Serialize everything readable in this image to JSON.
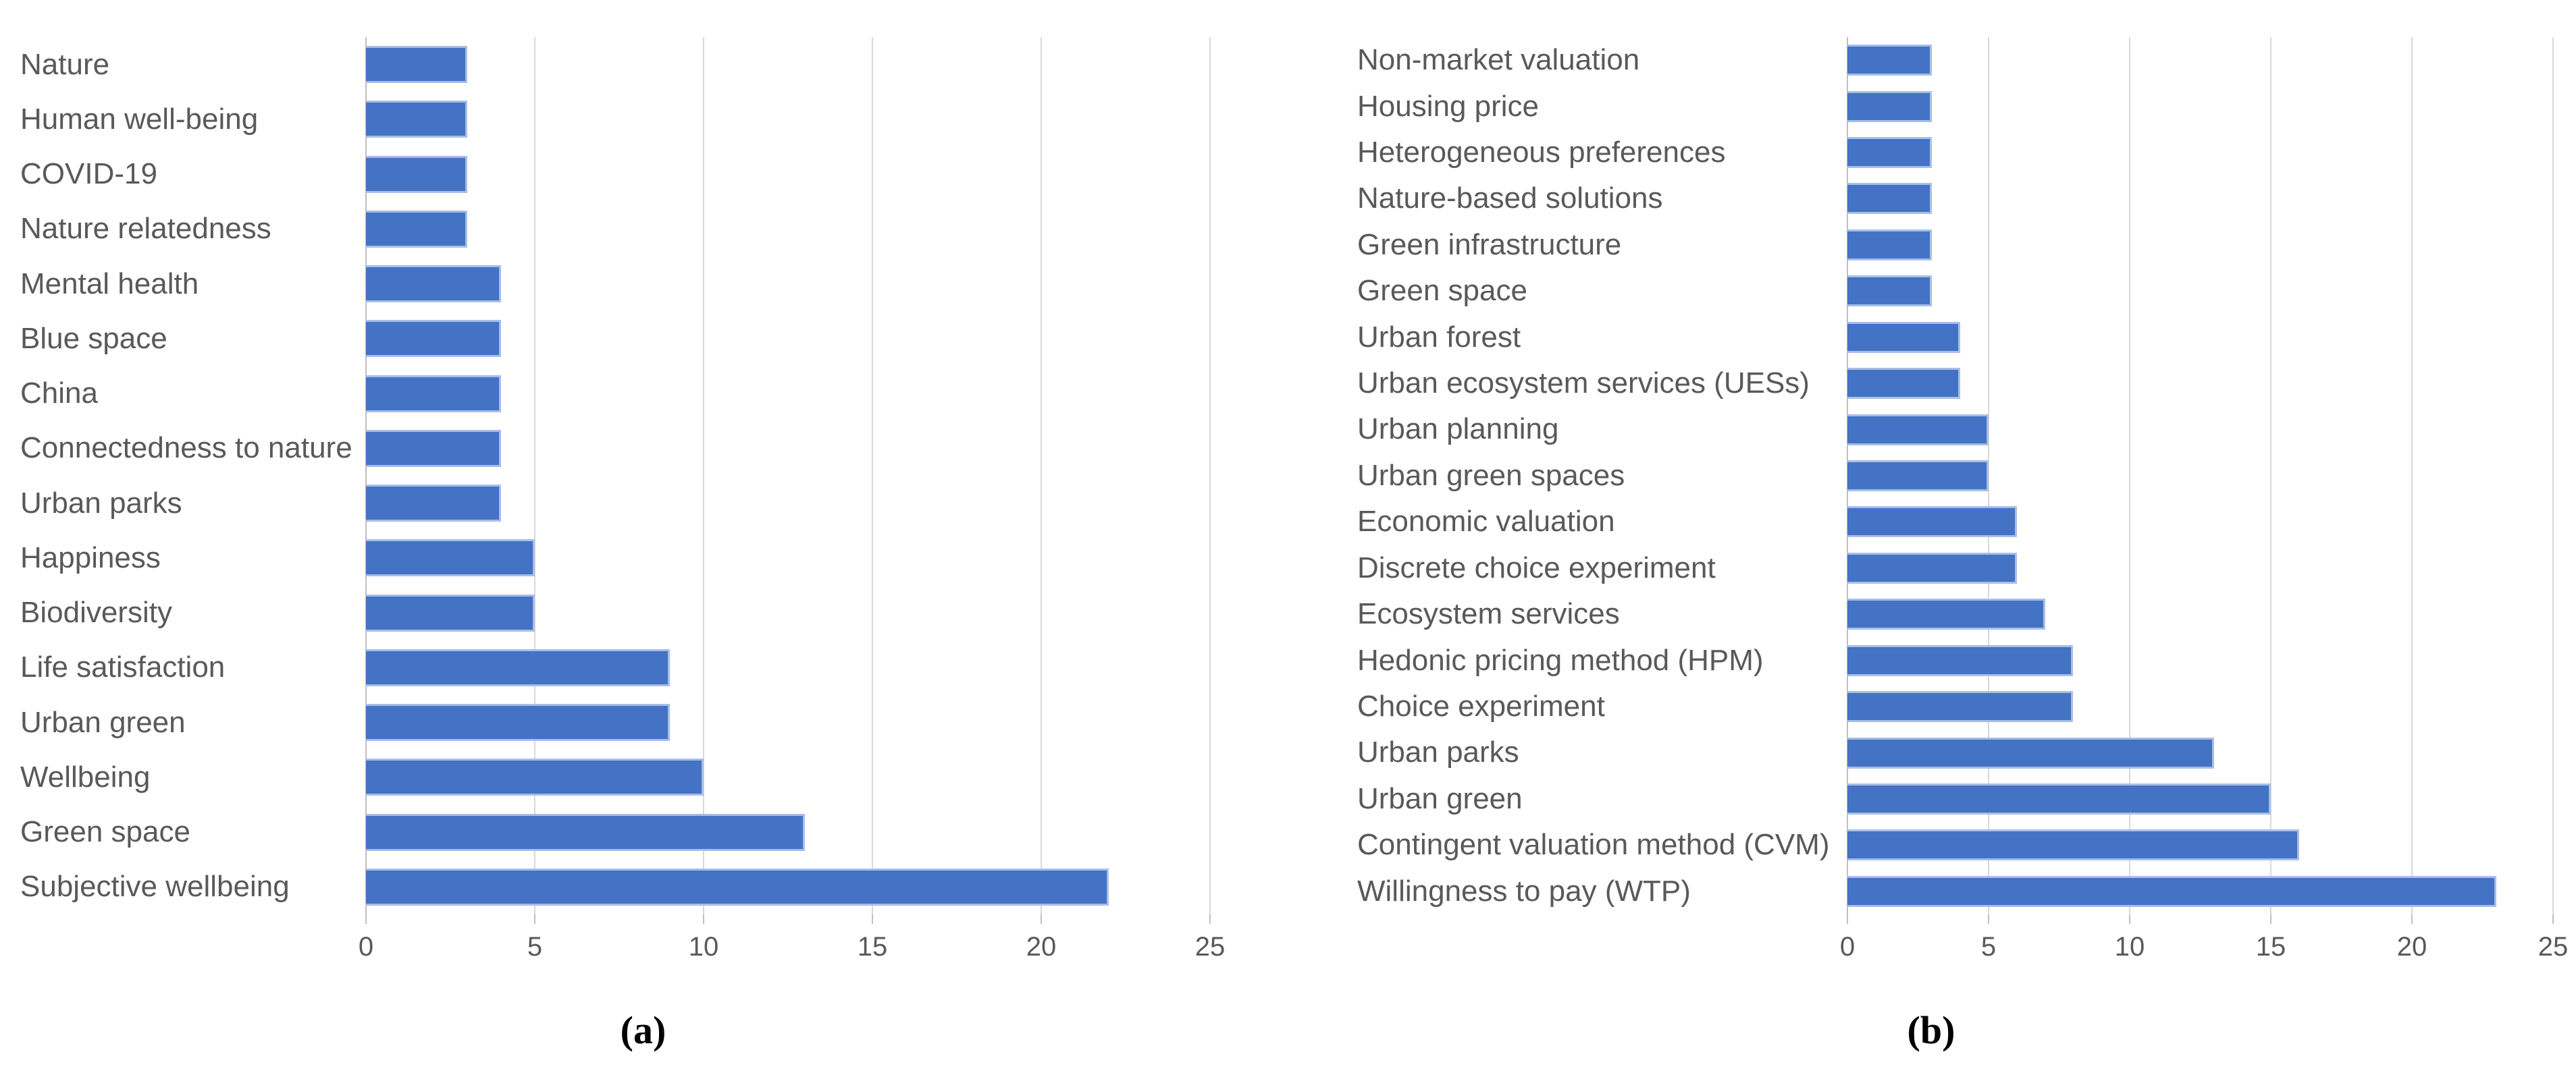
{
  "figure": {
    "background": "#ffffff",
    "text_color": "#595959",
    "gridline_color": "#D9D9D9",
    "axis_line_color": "#BFBFBF",
    "bar_color": "#4472C4",
    "bar_border_color": "#A6BEE8"
  },
  "chart_data": [
    {
      "id": "a",
      "type": "bar",
      "orientation": "horizontal",
      "title": "",
      "xlabel": "",
      "ylabel": "",
      "caption": "(a)",
      "grid": true,
      "legend": false,
      "xlim": [
        0,
        25
      ],
      "x_ticks": [
        0,
        5,
        10,
        15,
        20,
        25
      ],
      "categories": [
        "Nature",
        "Human well-being",
        "COVID-19",
        "Nature relatedness",
        "Mental health",
        "Blue space",
        "China",
        "Connectedness to nature",
        "Urban parks",
        "Happiness",
        "Biodiversity",
        "Life satisfaction",
        "Urban green",
        "Wellbeing",
        "Green space",
        "Subjective wellbeing"
      ],
      "values": [
        3,
        3,
        3,
        3,
        4,
        4,
        4,
        4,
        4,
        5,
        5,
        9,
        9,
        10,
        13,
        22
      ]
    },
    {
      "id": "b",
      "type": "bar",
      "orientation": "horizontal",
      "title": "",
      "xlabel": "",
      "ylabel": "",
      "caption": "(b)",
      "grid": true,
      "legend": false,
      "xlim": [
        0,
        25
      ],
      "x_ticks": [
        0,
        5,
        10,
        15,
        20,
        25
      ],
      "categories": [
        "Non-market valuation",
        "Housing price",
        "Heterogeneous preferences",
        "Nature-based solutions",
        "Green infrastructure",
        "Green space",
        "Urban forest",
        "Urban ecosystem services (UESs)",
        "Urban planning",
        "Urban green spaces",
        "Economic valuation",
        "Discrete choice experiment",
        "Ecosystem services",
        "Hedonic pricing method (HPM)",
        "Choice experiment",
        "Urban parks",
        "Urban green",
        "Contingent valuation method (CVM)",
        "Willingness to pay (WTP)"
      ],
      "values": [
        3,
        3,
        3,
        3,
        3,
        3,
        4,
        4,
        5,
        5,
        6,
        6,
        7,
        8,
        8,
        13,
        15,
        16,
        23
      ]
    }
  ]
}
